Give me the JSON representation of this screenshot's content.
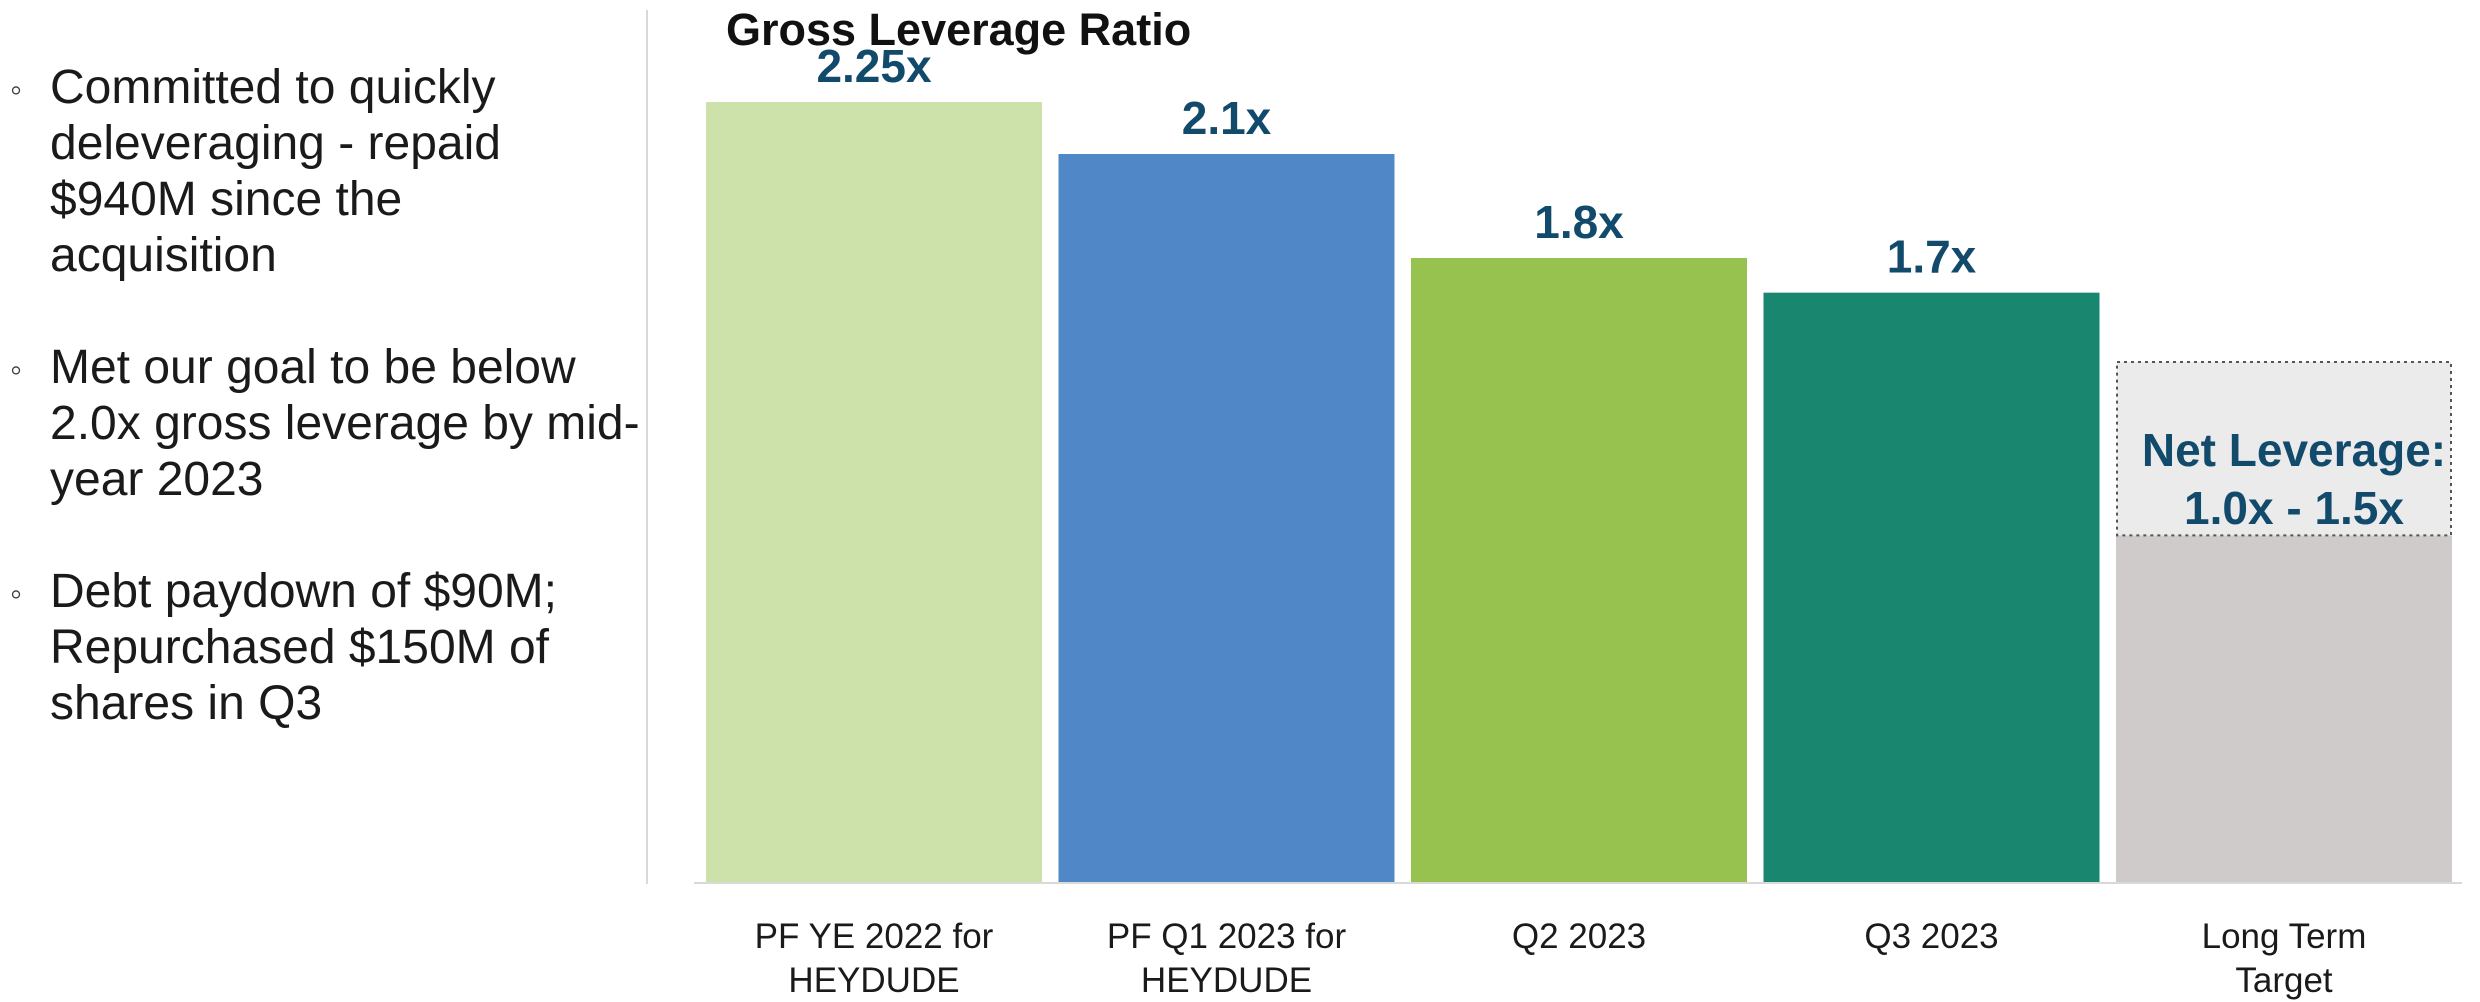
{
  "bullets": [
    "Committed to quickly deleveraging - repaid $940M since the acquisition",
    "Met our goal to be below 2.0x gross leverage by mid-year 2023",
    "Debt paydown of $90M; Repurchased $150M of shares in Q3"
  ],
  "chart_data": {
    "type": "bar",
    "title": "Gross Leverage Ratio",
    "categories": [
      [
        "PF YE 2022 for",
        "HEYDUDE"
      ],
      [
        "PF Q1 2023 for",
        "HEYDUDE"
      ],
      [
        "Q2 2023"
      ],
      [
        "Q3 2023"
      ],
      [
        "Long Term",
        "Target"
      ]
    ],
    "values": [
      2.25,
      2.1,
      1.8,
      1.7,
      null
    ],
    "value_labels": [
      "2.25x",
      "2.1x",
      "1.8x",
      "1.7x",
      ""
    ],
    "colors": [
      "#cde1aa",
      "#5087c6",
      "#98c24f",
      "#198770",
      "#d0cbcb"
    ],
    "target": {
      "low": 1.0,
      "high": 1.5,
      "label_lines": [
        "Net Leverage:",
        "1.0x - 1.5x"
      ],
      "range_color": "#ebebeb"
    },
    "ylim": [
      0,
      2.5
    ],
    "grid": false,
    "legend": "none"
  }
}
